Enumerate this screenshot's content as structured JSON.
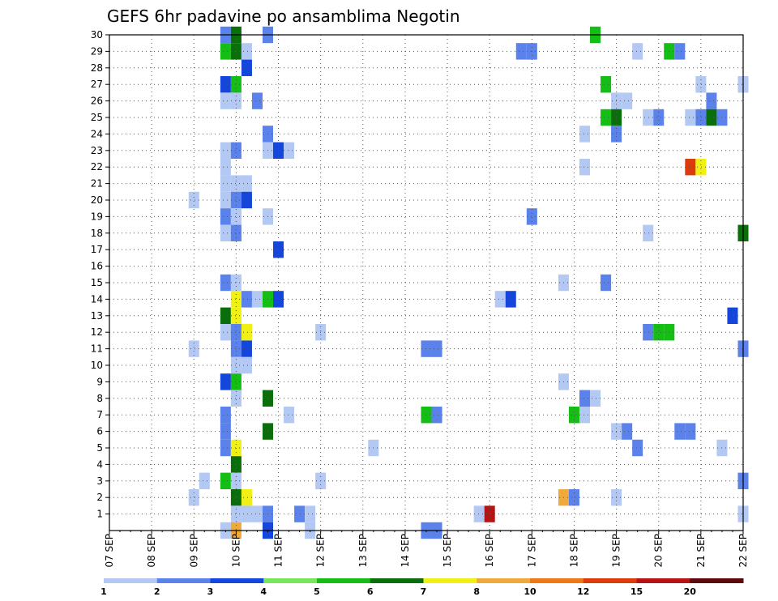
{
  "chart_data": {
    "type": "heatmap",
    "title": "GEFS 6hr padavine po ansamblima Negotin",
    "xlabel": "",
    "ylabel": "",
    "x_ticks": [
      "07 SEP",
      "08 SEP",
      "09 SEP",
      "10 SEP",
      "11 SEP",
      "12 SEP",
      "13 SEP",
      "14 SEP",
      "15 SEP",
      "16 SEP",
      "17 SEP",
      "18 SEP",
      "19 SEP",
      "20 SEP",
      "21 SEP",
      "22 SEP"
    ],
    "y_ticks": [
      1,
      2,
      3,
      4,
      5,
      6,
      7,
      8,
      9,
      10,
      11,
      12,
      13,
      14,
      15,
      16,
      17,
      18,
      19,
      20,
      21,
      22,
      23,
      24,
      25,
      26,
      27,
      28,
      29,
      30
    ],
    "xlim_days": [
      0,
      15
    ],
    "ylim_members": [
      0,
      30
    ],
    "grid": true,
    "legend": {
      "placement": "bottom",
      "levels": [
        "1",
        "2",
        "3",
        "4",
        "5",
        "6",
        "7",
        "8",
        "10",
        "12",
        "15",
        "20"
      ],
      "colors": [
        "#b4c8f4",
        "#5a82ea",
        "#1446dc",
        "#78e65a",
        "#14be14",
        "#0a6e0a",
        "#f0f014",
        "#f0aa3c",
        "#f07814",
        "#dc3c0a",
        "#b41414",
        "#5a0a0a"
      ]
    },
    "cells": [
      {
        "day": 2.0,
        "member": 20,
        "level": 1
      },
      {
        "day": 2.0,
        "member": 11,
        "level": 1
      },
      {
        "day": 2.0,
        "member": 2,
        "level": 1
      },
      {
        "day": 2.25,
        "member": 3,
        "level": 1
      },
      {
        "day": 2.75,
        "member": 30,
        "level": 2
      },
      {
        "day": 2.75,
        "member": 29,
        "level": 5
      },
      {
        "day": 2.75,
        "member": 27,
        "level": 3
      },
      {
        "day": 2.75,
        "member": 26,
        "level": 1
      },
      {
        "day": 2.75,
        "member": 23,
        "level": 1
      },
      {
        "day": 2.75,
        "member": 22,
        "level": 1
      },
      {
        "day": 2.75,
        "member": 21,
        "level": 1
      },
      {
        "day": 2.75,
        "member": 20,
        "level": 1
      },
      {
        "day": 2.75,
        "member": 19,
        "level": 2
      },
      {
        "day": 2.75,
        "member": 18,
        "level": 1
      },
      {
        "day": 2.75,
        "member": 15,
        "level": 2
      },
      {
        "day": 2.75,
        "member": 13,
        "level": 6
      },
      {
        "day": 2.75,
        "member": 12,
        "level": 1
      },
      {
        "day": 2.75,
        "member": 9,
        "level": 3
      },
      {
        "day": 2.75,
        "member": 7,
        "level": 2
      },
      {
        "day": 2.75,
        "member": 6,
        "level": 2
      },
      {
        "day": 2.75,
        "member": 5,
        "level": 2
      },
      {
        "day": 2.75,
        "member": 3,
        "level": 5
      },
      {
        "day": 2.75,
        "member": 0,
        "level": 1
      },
      {
        "day": 3.0,
        "member": 30,
        "level": 6
      },
      {
        "day": 3.0,
        "member": 29,
        "level": 6
      },
      {
        "day": 3.0,
        "member": 27,
        "level": 5
      },
      {
        "day": 3.0,
        "member": 26,
        "level": 1
      },
      {
        "day": 3.0,
        "member": 23,
        "level": 2
      },
      {
        "day": 3.0,
        "member": 21,
        "level": 1
      },
      {
        "day": 3.0,
        "member": 20,
        "level": 2
      },
      {
        "day": 3.0,
        "member": 19,
        "level": 1
      },
      {
        "day": 3.0,
        "member": 18,
        "level": 2
      },
      {
        "day": 3.0,
        "member": 15,
        "level": 1
      },
      {
        "day": 3.0,
        "member": 14,
        "level": 7
      },
      {
        "day": 3.0,
        "member": 13,
        "level": 7
      },
      {
        "day": 3.0,
        "member": 12,
        "level": 2
      },
      {
        "day": 3.0,
        "member": 11,
        "level": 2
      },
      {
        "day": 3.0,
        "member": 10,
        "level": 1
      },
      {
        "day": 3.0,
        "member": 9,
        "level": 5
      },
      {
        "day": 3.0,
        "member": 8,
        "level": 1
      },
      {
        "day": 3.0,
        "member": 5,
        "level": 7
      },
      {
        "day": 3.0,
        "member": 4,
        "level": 6
      },
      {
        "day": 3.0,
        "member": 3,
        "level": 1
      },
      {
        "day": 3.0,
        "member": 2,
        "level": 6
      },
      {
        "day": 3.0,
        "member": 1,
        "level": 1
      },
      {
        "day": 3.0,
        "member": 0,
        "level": 8
      },
      {
        "day": 3.25,
        "member": 29,
        "level": 1
      },
      {
        "day": 3.25,
        "member": 28,
        "level": 3
      },
      {
        "day": 3.25,
        "member": 21,
        "level": 1
      },
      {
        "day": 3.25,
        "member": 20,
        "level": 3
      },
      {
        "day": 3.25,
        "member": 14,
        "level": 2
      },
      {
        "day": 3.25,
        "member": 12,
        "level": 7
      },
      {
        "day": 3.25,
        "member": 11,
        "level": 3
      },
      {
        "day": 3.25,
        "member": 10,
        "level": 1
      },
      {
        "day": 3.25,
        "member": 2,
        "level": 7
      },
      {
        "day": 3.25,
        "member": 1,
        "level": 1
      },
      {
        "day": 3.5,
        "member": 26,
        "level": 2
      },
      {
        "day": 3.5,
        "member": 14,
        "level": 1
      },
      {
        "day": 3.5,
        "member": 1,
        "level": 1
      },
      {
        "day": 3.75,
        "member": 30,
        "level": 2
      },
      {
        "day": 3.75,
        "member": 24,
        "level": 2
      },
      {
        "day": 3.75,
        "member": 23,
        "level": 1
      },
      {
        "day": 3.75,
        "member": 19,
        "level": 1
      },
      {
        "day": 3.75,
        "member": 14,
        "level": 5
      },
      {
        "day": 3.75,
        "member": 8,
        "level": 6
      },
      {
        "day": 3.75,
        "member": 6,
        "level": 6
      },
      {
        "day": 3.75,
        "member": 1,
        "level": 2
      },
      {
        "day": 3.75,
        "member": 0,
        "level": 3
      },
      {
        "day": 4.0,
        "member": 23,
        "level": 3
      },
      {
        "day": 4.0,
        "member": 17,
        "level": 3
      },
      {
        "day": 4.0,
        "member": 14,
        "level": 3
      },
      {
        "day": 4.25,
        "member": 23,
        "level": 1
      },
      {
        "day": 4.25,
        "member": 7,
        "level": 1
      },
      {
        "day": 4.5,
        "member": 1,
        "level": 2
      },
      {
        "day": 4.75,
        "member": 1,
        "level": 1
      },
      {
        "day": 4.75,
        "member": 0,
        "level": 1
      },
      {
        "day": 5.0,
        "member": 12,
        "level": 1
      },
      {
        "day": 5.0,
        "member": 3,
        "level": 1
      },
      {
        "day": 6.25,
        "member": 5,
        "level": 1
      },
      {
        "day": 7.5,
        "member": 11,
        "level": 2
      },
      {
        "day": 7.5,
        "member": 7,
        "level": 5
      },
      {
        "day": 7.5,
        "member": 0,
        "level": 2
      },
      {
        "day": 7.75,
        "member": 11,
        "level": 2
      },
      {
        "day": 7.75,
        "member": 7,
        "level": 2
      },
      {
        "day": 7.75,
        "member": 0,
        "level": 2
      },
      {
        "day": 8.75,
        "member": 1,
        "level": 1
      },
      {
        "day": 9.0,
        "member": 1,
        "level": 11
      },
      {
        "day": 9.25,
        "member": 14,
        "level": 1
      },
      {
        "day": 9.5,
        "member": 14,
        "level": 3
      },
      {
        "day": 9.75,
        "member": 29,
        "level": 2
      },
      {
        "day": 10.0,
        "member": 29,
        "level": 2
      },
      {
        "day": 10.0,
        "member": 19,
        "level": 2
      },
      {
        "day": 10.75,
        "member": 15,
        "level": 1
      },
      {
        "day": 10.75,
        "member": 9,
        "level": 1
      },
      {
        "day": 10.75,
        "member": 2,
        "level": 8
      },
      {
        "day": 11.0,
        "member": 7,
        "level": 5
      },
      {
        "day": 11.0,
        "member": 2,
        "level": 2
      },
      {
        "day": 11.25,
        "member": 24,
        "level": 1
      },
      {
        "day": 11.25,
        "member": 22,
        "level": 1
      },
      {
        "day": 11.25,
        "member": 8,
        "level": 2
      },
      {
        "day": 11.25,
        "member": 7,
        "level": 1
      },
      {
        "day": 11.5,
        "member": 30,
        "level": 5
      },
      {
        "day": 11.5,
        "member": 8,
        "level": 1
      },
      {
        "day": 11.75,
        "member": 27,
        "level": 5
      },
      {
        "day": 11.75,
        "member": 25,
        "level": 5
      },
      {
        "day": 11.75,
        "member": 15,
        "level": 2
      },
      {
        "day": 12.0,
        "member": 26,
        "level": 1
      },
      {
        "day": 12.0,
        "member": 25,
        "level": 6
      },
      {
        "day": 12.0,
        "member": 24,
        "level": 2
      },
      {
        "day": 12.0,
        "member": 6,
        "level": 1
      },
      {
        "day": 12.0,
        "member": 2,
        "level": 1
      },
      {
        "day": 12.25,
        "member": 26,
        "level": 1
      },
      {
        "day": 12.25,
        "member": 6,
        "level": 2
      },
      {
        "day": 12.5,
        "member": 29,
        "level": 1
      },
      {
        "day": 12.5,
        "member": 5,
        "level": 2
      },
      {
        "day": 12.75,
        "member": 25,
        "level": 1
      },
      {
        "day": 12.75,
        "member": 18,
        "level": 1
      },
      {
        "day": 12.75,
        "member": 12,
        "level": 2
      },
      {
        "day": 13.0,
        "member": 25,
        "level": 2
      },
      {
        "day": 13.0,
        "member": 12,
        "level": 5
      },
      {
        "day": 13.25,
        "member": 29,
        "level": 5
      },
      {
        "day": 13.25,
        "member": 12,
        "level": 5
      },
      {
        "day": 13.5,
        "member": 29,
        "level": 2
      },
      {
        "day": 13.5,
        "member": 6,
        "level": 2
      },
      {
        "day": 13.75,
        "member": 25,
        "level": 1
      },
      {
        "day": 13.75,
        "member": 22,
        "level": 10
      },
      {
        "day": 13.75,
        "member": 6,
        "level": 2
      },
      {
        "day": 14.0,
        "member": 27,
        "level": 1
      },
      {
        "day": 14.0,
        "member": 25,
        "level": 2
      },
      {
        "day": 14.0,
        "member": 22,
        "level": 7
      },
      {
        "day": 14.25,
        "member": 26,
        "level": 2
      },
      {
        "day": 14.25,
        "member": 25,
        "level": 6
      },
      {
        "day": 14.5,
        "member": 25,
        "level": 2
      },
      {
        "day": 14.5,
        "member": 5,
        "level": 1
      },
      {
        "day": 14.75,
        "member": 13,
        "level": 3
      },
      {
        "day": 15.0,
        "member": 27,
        "level": 1
      },
      {
        "day": 15.0,
        "member": 18,
        "level": 6
      },
      {
        "day": 15.0,
        "member": 11,
        "level": 2
      },
      {
        "day": 15.0,
        "member": 3,
        "level": 2
      },
      {
        "day": 15.0,
        "member": 1,
        "level": 1
      }
    ]
  }
}
